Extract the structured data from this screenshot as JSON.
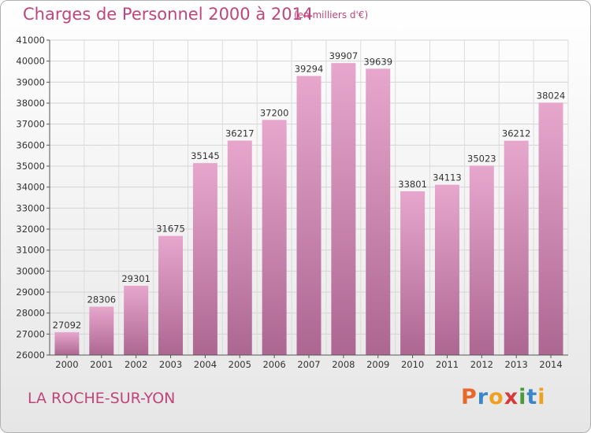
{
  "header": {
    "title": "Charges de Personnel 2000 à 2014",
    "subtitle": "(en milliers d'€)"
  },
  "footer": {
    "city": "LA ROCHE-SUR-YON",
    "logo_letters": [
      "P",
      "r",
      "o",
      "x",
      "i",
      "t",
      "i"
    ]
  },
  "colors": {
    "accent": "#c0457a",
    "bar_top": "#e7a7cd",
    "bar_bottom": "#ac6791",
    "logo_letters": [
      "#e8672a",
      "#3a86c8",
      "#f0a020",
      "#d63a3a",
      "#4a9a3a",
      "#3a86c8",
      "#f0a020"
    ]
  },
  "chart_data": {
    "type": "bar",
    "title": "Charges de Personnel 2000 à 2014",
    "subtitle": "(en milliers d'€)",
    "categories": [
      "2000",
      "2001",
      "2002",
      "2003",
      "2004",
      "2005",
      "2006",
      "2007",
      "2008",
      "2009",
      "2010",
      "2011",
      "2012",
      "2013",
      "2014"
    ],
    "values": [
      27092,
      28306,
      29301,
      31675,
      35145,
      36217,
      37200,
      39294,
      39907,
      39639,
      33801,
      34113,
      35023,
      36212,
      38024
    ],
    "ylim": [
      26000,
      41000
    ],
    "yticks": [
      26000,
      27000,
      28000,
      29000,
      30000,
      31000,
      32000,
      33000,
      34000,
      35000,
      36000,
      37000,
      38000,
      39000,
      40000,
      41000
    ],
    "xlabel": "",
    "ylabel": "",
    "grid": true,
    "legend": "none"
  }
}
